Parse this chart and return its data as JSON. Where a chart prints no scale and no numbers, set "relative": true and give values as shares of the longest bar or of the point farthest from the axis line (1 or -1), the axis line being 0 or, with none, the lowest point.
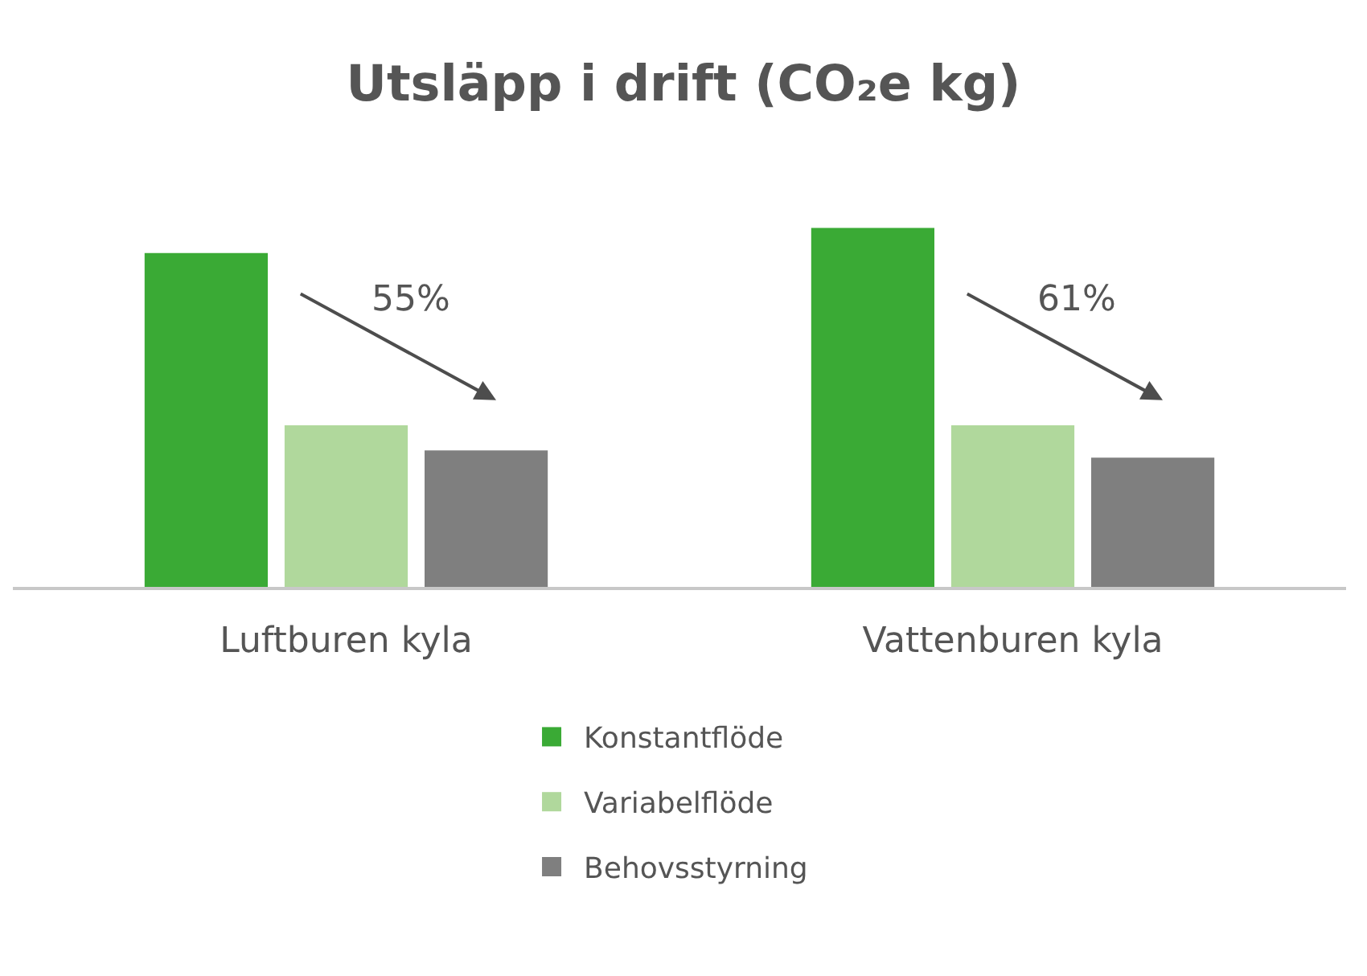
{
  "chart_data": {
    "type": "bar",
    "title": "Utsläpp i drift (CO₂e kg)",
    "relative": true,
    "categories": [
      "Luftburen kyla",
      "Vattenburen kyla"
    ],
    "series": [
      {
        "name": "Konstantflöde",
        "color": "#3aaa35",
        "values": [
          0.93,
          1
        ]
      },
      {
        "name": "Variabelflöde",
        "color": "#b0d89c",
        "values": [
          0.45,
          0.45
        ]
      },
      {
        "name": "Behovsstyrning",
        "color": "#7f7f7f",
        "values": [
          0.38,
          0.36
        ]
      }
    ],
    "annotations": [
      "55%",
      "61%"
    ],
    "legend": "bottom",
    "grid": false
  }
}
